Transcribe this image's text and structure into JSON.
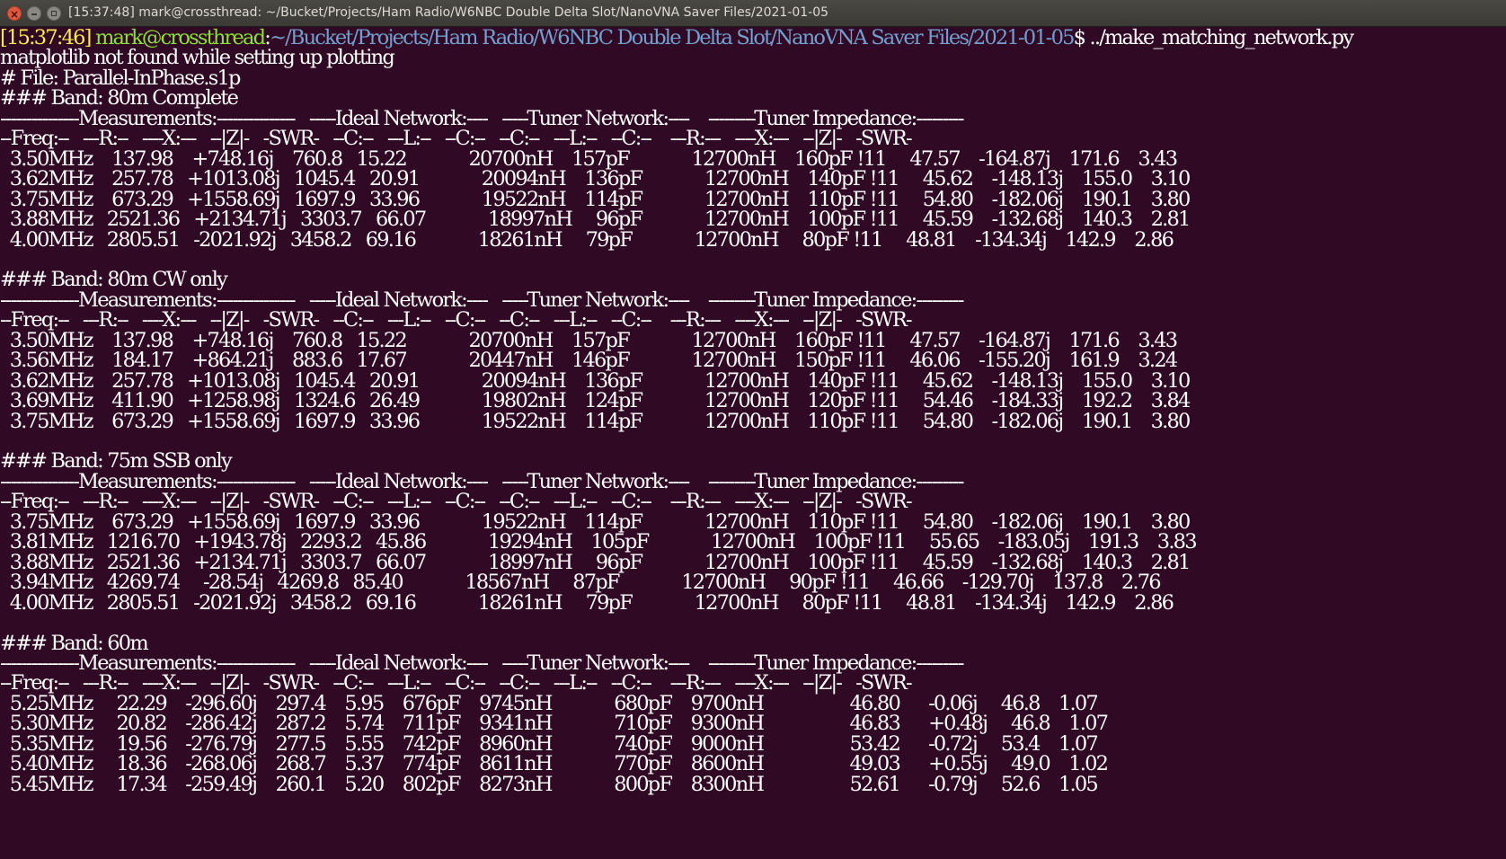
{
  "window": {
    "title": "[15:37:48] mark@crossthread: ~/Bucket/Projects/Ham Radio/W6NBC Double Delta Slot/NanoVNA Saver Files/2021-01-05",
    "close_glyph": "×"
  },
  "prompt": {
    "time": "[15:37:46]",
    "user": "mark@crossthread",
    "colon": ":",
    "path": "~/Bucket/Projects/Ham Radio/W6NBC Double Delta Slot/NanoVNA Saver Files/2021-01-05",
    "symbol": "$",
    "command": " ../make_matching_network.py"
  },
  "colors": {
    "background": "#300a24",
    "text": "#ffffff",
    "prompt_time": "#fce94f",
    "prompt_user": "#8ae234",
    "prompt_path": "#729fcf"
  },
  "output_lines": [
    "matplotlib not found while setting up plotting",
    "# File: Parallel-InPhase.s1p",
    "### Band: 80m Complete",
    "---------------Measurements:---------------   -----Ideal Network:----   -----Tuner Network:----    ---------Tuner Impedance:---------",
    "--Freq:--   ---R:--   ----X:---   --|Z|-   -SWR-   --C:--   ---L:--   --C:--   --C:--   ---L:--   --C:--    ---R:---   ----X:---   --|Z|-   -SWR-",
    "  3.50MHz    137.98    +748.16j    760.8   15.22             20700nH    157pF             12700nH    160pF !11     47.57    -164.87j    171.6    3.43",
    "  3.62MHz    257.78   +1013.08j   1045.4   20.91             20094nH    136pF             12700nH    140pF !11     45.62    -148.13j    155.0    3.10",
    "  3.75MHz    673.29   +1558.69j   1697.9   33.96             19522nH    114pF             12700nH    110pF !11     54.80    -182.06j    190.1    3.80",
    "  3.88MHz   2521.36   +2134.71j   3303.7   66.07             18997nH     96pF             12700nH    100pF !11     45.59    -132.68j    140.3    2.81",
    "  4.00MHz   2805.51   -2021.92j   3458.2   69.16             18261nH     79pF             12700nH     80pF !11     48.81    -134.34j    142.9    2.86",
    "",
    "### Band: 80m CW only",
    "---------------Measurements:---------------   -----Ideal Network:----   -----Tuner Network:----    ---------Tuner Impedance:---------",
    "--Freq:--   ---R:--   ----X:---   --|Z|-   -SWR-   --C:--   ---L:--   --C:--   --C:--   ---L:--   --C:--    ---R:---   ----X:---   --|Z|-   -SWR-",
    "  3.50MHz    137.98    +748.16j    760.8   15.22             20700nH    157pF             12700nH    160pF !11     47.57    -164.87j    171.6    3.43",
    "  3.56MHz    184.17    +864.21j    883.6   17.67             20447nH    146pF             12700nH    150pF !11     46.06    -155.20j    161.9    3.24",
    "  3.62MHz    257.78   +1013.08j   1045.4   20.91             20094nH    136pF             12700nH    140pF !11     45.62    -148.13j    155.0    3.10",
    "  3.69MHz    411.90   +1258.98j   1324.6   26.49             19802nH    124pF             12700nH    120pF !11     54.46    -184.33j    192.2    3.84",
    "  3.75MHz    673.29   +1558.69j   1697.9   33.96             19522nH    114pF             12700nH    110pF !11     54.80    -182.06j    190.1    3.80",
    "",
    "### Band: 75m SSB only",
    "---------------Measurements:---------------   -----Ideal Network:----   -----Tuner Network:----    ---------Tuner Impedance:---------",
    "--Freq:--   ---R:--   ----X:---   --|Z|-   -SWR-   --C:--   ---L:--   --C:--   --C:--   ---L:--   --C:--    ---R:---   ----X:---   --|Z|-   -SWR-",
    "  3.75MHz    673.29   +1558.69j   1697.9   33.96             19522nH    114pF             12700nH    110pF !11     54.80    -182.06j    190.1    3.80",
    "  3.81MHz   1216.70   +1943.78j   2293.2   45.86             19294nH    105pF             12700nH    100pF !11     55.65    -183.05j    191.3    3.83",
    "  3.88MHz   2521.36   +2134.71j   3303.7   66.07             18997nH     96pF             12700nH    100pF !11     45.59    -132.68j    140.3    2.81",
    "  3.94MHz   4269.74     -28.54j   4269.8   85.40             18567nH     87pF             12700nH     90pF !11     46.66    -129.70j    137.8    2.76",
    "  4.00MHz   2805.51   -2021.92j   3458.2   69.16             18261nH     79pF             12700nH     80pF !11     48.81    -134.34j    142.9    2.86",
    "",
    "### Band: 60m",
    "---------------Measurements:---------------   -----Ideal Network:----   -----Tuner Network:----    ---------Tuner Impedance:---------",
    "--Freq:--   ---R:--   ----X:---   --|Z|-   -SWR-   --C:--   ---L:--   --C:--   --C:--   ---L:--   --C:--    ---R:---   ----X:---   --|Z|-   -SWR-",
    "  5.25MHz     22.29    -296.60j    297.4    5.95    676pF    9745nH             680pF    9700nH                  46.80      -0.06j     46.8    1.07",
    "  5.30MHz     20.82    -286.42j    287.2    5.74    711pF    9341nH             710pF    9300nH                  46.83      +0.48j     46.8    1.07",
    "  5.35MHz     19.56    -276.79j    277.5    5.55    742pF    8960nH             740pF    9000nH                  53.42      -0.72j     53.4    1.07",
    "  5.40MHz     18.36    -268.06j    268.7    5.37    774pF    8611nH             770pF    8600nH                  49.03      +0.55j     49.0    1.02",
    "  5.45MHz     17.34    -259.49j    260.1    5.20    802pF    8273nH             800pF    8300nH                  52.61      -0.79j     52.6    1.05"
  ]
}
